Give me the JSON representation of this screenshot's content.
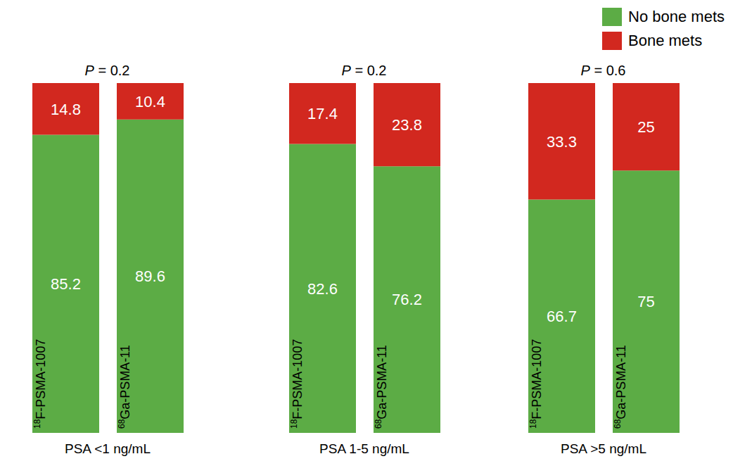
{
  "chart_data": [
    {
      "type": "bar",
      "stacked": true,
      "data_labels": true,
      "grid": false,
      "title": "P = 0.2",
      "xlabel": "PSA <1 ng/mL",
      "categories": [
        "18F-PSMA-1007",
        "68Ga-PSMA-11"
      ],
      "ylim": [
        0,
        100
      ],
      "series": [
        {
          "name": "No bone mets",
          "color": "#5cac45",
          "values": [
            85.2,
            89.6
          ]
        },
        {
          "name": "Bone mets",
          "color": "#d2281f",
          "values": [
            14.8,
            10.4
          ]
        }
      ]
    },
    {
      "type": "bar",
      "stacked": true,
      "data_labels": true,
      "grid": false,
      "title": "P = 0.2",
      "xlabel": "PSA 1-5 ng/mL",
      "categories": [
        "18F-PSMA-1007",
        "68Ga-PSMA-11"
      ],
      "ylim": [
        0,
        100
      ],
      "series": [
        {
          "name": "No bone mets",
          "color": "#5cac45",
          "values": [
            82.6,
            76.2
          ]
        },
        {
          "name": "Bone mets",
          "color": "#d2281f",
          "values": [
            17.4,
            23.8
          ]
        }
      ]
    },
    {
      "type": "bar",
      "stacked": true,
      "data_labels": true,
      "grid": false,
      "title": "P = 0.6",
      "xlabel": "PSA >5 ng/mL",
      "legend": "upper right",
      "categories": [
        "18F-PSMA-1007",
        "68Ga-PSMA-11"
      ],
      "ylim": [
        0,
        100
      ],
      "series": [
        {
          "name": "No bone mets",
          "color": "#5cac45",
          "values": [
            66.7,
            75
          ]
        },
        {
          "name": "Bone mets",
          "color": "#d2281f",
          "values": [
            33.3,
            25
          ]
        }
      ]
    }
  ]
}
